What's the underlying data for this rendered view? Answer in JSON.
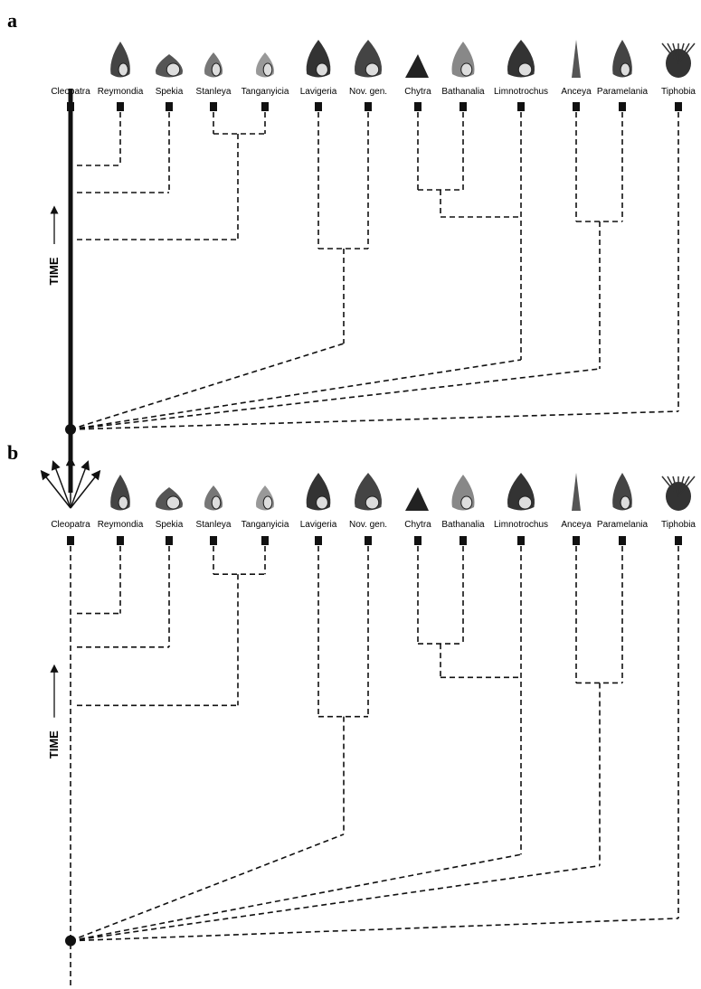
{
  "panels": [
    {
      "label": "a",
      "time_label": "TIME",
      "taxa": [
        "Cleopatra",
        "Reymondia",
        "Spekia",
        "Stanleya",
        "Tanganyicia",
        "Lavigeria",
        "Nov. gen.",
        "Chytra",
        "Bathanalia",
        "Limnotrochus",
        "Anceya",
        "Paramelania",
        "Tiphobia"
      ]
    },
    {
      "label": "b",
      "time_label": "TIME",
      "taxa": [
        "Cleopatra",
        "Reymondia",
        "Spekia",
        "Stanleya",
        "Tanganyicia",
        "Lavigeria",
        "Nov. gen.",
        "Chytra",
        "Bathanalia",
        "Limnotrochus",
        "Anceya",
        "Paramelania",
        "Tiphobia"
      ]
    }
  ]
}
